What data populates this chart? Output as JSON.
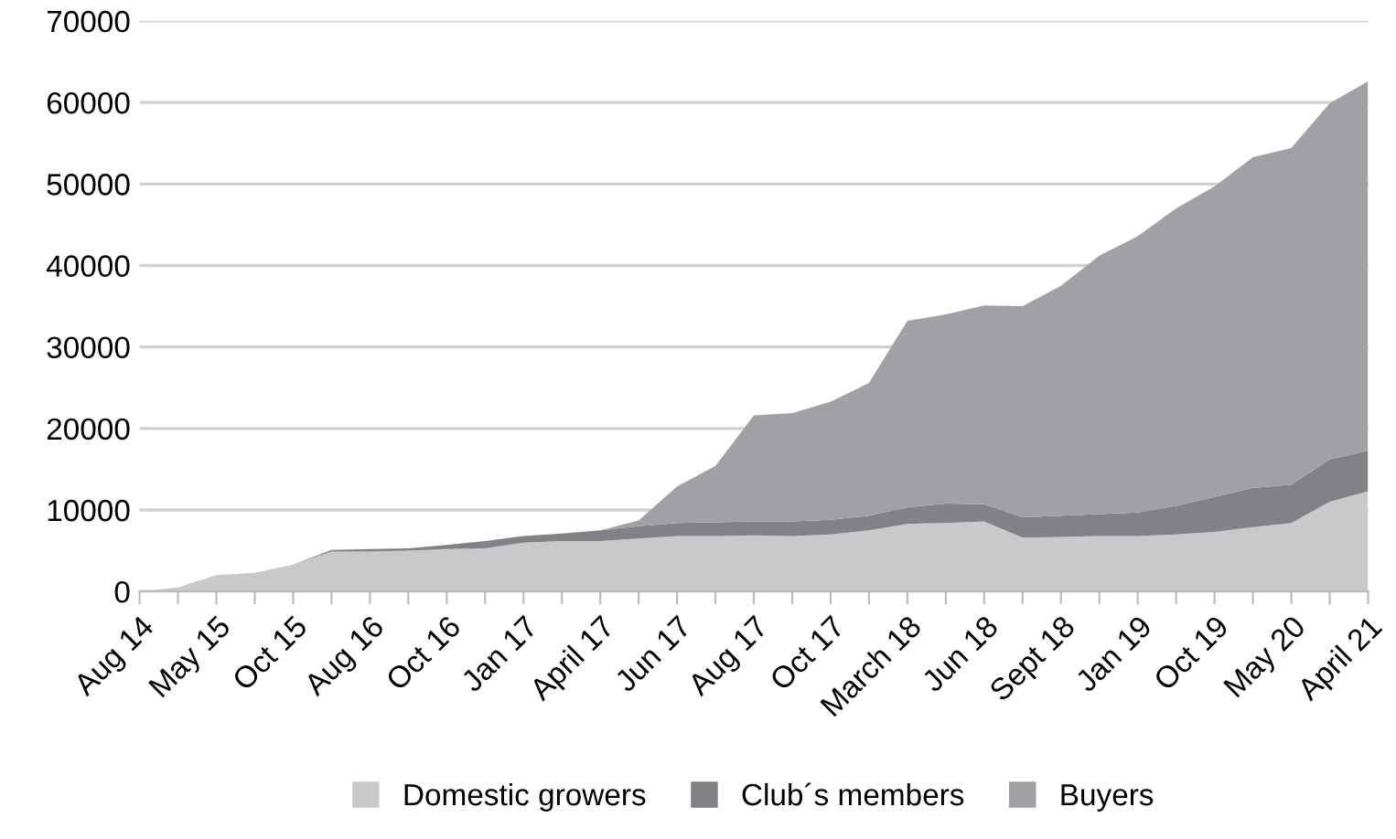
{
  "chart_data": {
    "type": "area",
    "stacked": true,
    "categories": [
      "Aug 14",
      null,
      "May 15",
      null,
      "Oct 15",
      null,
      "Aug 16",
      null,
      "Oct 16",
      null,
      "Jan 17",
      null,
      "April 17",
      null,
      "Jun 17",
      null,
      "Aug 17",
      null,
      "Oct 17",
      null,
      "March 18",
      null,
      "Jun 18",
      null,
      "Sept 18",
      null,
      "Jan 19",
      null,
      "Oct 19",
      null,
      "May 20",
      null,
      "April 21"
    ],
    "series": [
      {
        "name": "Domestic growers",
        "color": "#c8c9cb",
        "values": [
          0,
          500,
          2000,
          2300,
          3300,
          4900,
          4900,
          5000,
          5200,
          5300,
          6000,
          6200,
          6200,
          6500,
          6800,
          6800,
          6900,
          6800,
          7000,
          7500,
          8300,
          8400,
          8600,
          6600,
          6700,
          6800,
          6800,
          7000,
          7300,
          7900,
          8400,
          11000,
          12300
        ]
      },
      {
        "name": "Club´s members",
        "color": "#818285",
        "values": [
          0,
          0,
          0,
          0,
          0,
          200,
          300,
          300,
          500,
          900,
          800,
          900,
          1300,
          1500,
          1600,
          1700,
          1700,
          1800,
          1800,
          1800,
          2000,
          2400,
          2100,
          2500,
          2600,
          2700,
          2900,
          3500,
          4300,
          4800,
          4700,
          5200,
          5000
        ]
      },
      {
        "name": "Buyers",
        "color": "#a0a1a4",
        "values": [
          0,
          0,
          0,
          0,
          0,
          0,
          0,
          0,
          0,
          0,
          0,
          0,
          0,
          700,
          4500,
          6900,
          13000,
          13300,
          14500,
          16300,
          22900,
          23200,
          24400,
          25900,
          28200,
          31700,
          33900,
          36500,
          38100,
          40600,
          41300,
          43700,
          45300
        ]
      }
    ],
    "ylim": [
      0,
      70000
    ],
    "yticks": [
      0,
      10000,
      20000,
      30000,
      40000,
      50000,
      60000,
      70000
    ],
    "grid": "y",
    "legend": "bottom"
  }
}
